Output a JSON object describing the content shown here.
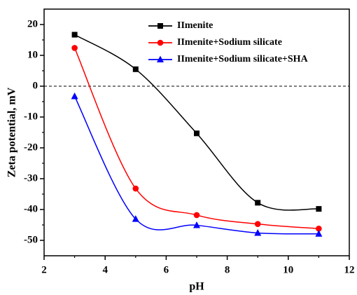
{
  "chart_data": {
    "type": "line",
    "x_label": "pH",
    "y_label": "Zeta potential, mV",
    "x": [
      3,
      5,
      7,
      9,
      11
    ],
    "series": [
      {
        "name": "IImenite",
        "color": "#000000",
        "marker": "square",
        "values": [
          16.7,
          5.5,
          -15.3,
          -37.8,
          -39.8
        ]
      },
      {
        "name": "IImenite+Sodium silicate",
        "color": "#ff0000",
        "marker": "circle",
        "values": [
          12.4,
          -33.2,
          -41.8,
          -44.7,
          -46.2
        ]
      },
      {
        "name": "IImenite+Sodium silicate+SHA",
        "color": "#0000ff",
        "marker": "triangle",
        "values": [
          -3.3,
          -43.1,
          -45.1,
          -47.6,
          -47.9
        ]
      }
    ],
    "xlim": [
      2,
      12
    ],
    "xticks": [
      2,
      4,
      6,
      8,
      10,
      12
    ],
    "ylim": [
      -55,
      25
    ],
    "yticks": [
      -50,
      -40,
      -30,
      -20,
      -10,
      0,
      10,
      20
    ],
    "hline": 0,
    "smooth": true,
    "legend": "top"
  }
}
